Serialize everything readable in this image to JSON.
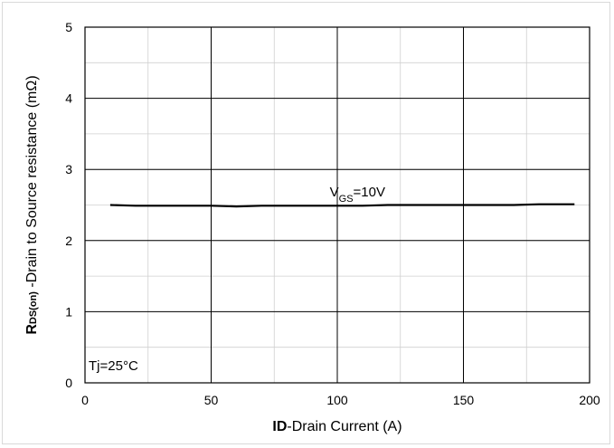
{
  "chart_data": {
    "type": "line",
    "x_label_bold": "ID",
    "x_label_rest": "-Drain Current  (A)",
    "y_label_main": "R",
    "y_label_sub": "DS(on)",
    "y_label_rest": " -Drain to Source resistance (mΩ)",
    "xlim": [
      0,
      200
    ],
    "ylim": [
      0,
      5
    ],
    "x_ticks": [
      "0",
      "50",
      "100",
      "150",
      "200"
    ],
    "y_ticks": [
      "0",
      "1",
      "2",
      "3",
      "4",
      "5"
    ],
    "grid_major": true,
    "grid_minor": true,
    "series": [
      {
        "label_main": "V",
        "label_sub": "GS",
        "label_rest": "=10V",
        "x": [
          10,
          20,
          30,
          40,
          50,
          60,
          70,
          80,
          90,
          100,
          110,
          120,
          130,
          140,
          150,
          160,
          170,
          180,
          194
        ],
        "y": [
          2.5,
          2.49,
          2.49,
          2.49,
          2.49,
          2.48,
          2.49,
          2.49,
          2.49,
          2.49,
          2.49,
          2.5,
          2.5,
          2.5,
          2.5,
          2.5,
          2.5,
          2.51,
          2.51
        ]
      }
    ],
    "annotation": "Tj=25°C"
  }
}
